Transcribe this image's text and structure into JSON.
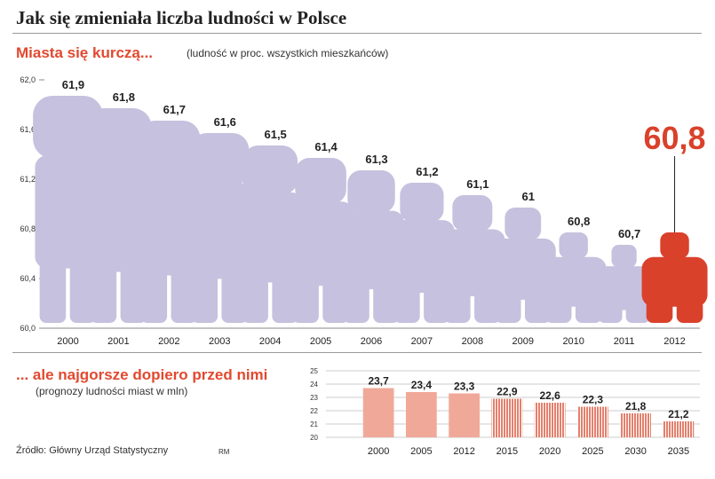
{
  "title": "Jak się zmieniała liczba ludności w Polsce",
  "top_chart": {
    "heading": "Miasta się kurczą...",
    "note": "(ludność w proc. wszystkich mieszkańców)"
  },
  "bottom_chart": {
    "heading": "... ale najgorsze dopiero przed nimi",
    "note": "(prognozy ludności miast w mln)"
  },
  "source": "Źródło: Główny Urząd Statystyczny",
  "author_initials": "RM",
  "colors": {
    "historic": "#c6c1de",
    "highlight": "#d9412b",
    "bar": "#f0a999",
    "forecast_stripe": "#e4806d",
    "axis": "#888888"
  },
  "chart_data": [
    {
      "type": "bar",
      "title": "Miasta się kurczą...",
      "ylabel": "ludność w proc. wszystkich mieszkańców",
      "ylim": [
        60.0,
        62.0
      ],
      "yticks": [
        "62,0",
        "61,6",
        "61,2",
        "60,8",
        "60,4",
        "60,0"
      ],
      "ytick_values": [
        62.0,
        61.6,
        61.2,
        60.8,
        60.4,
        60.0
      ],
      "categories": [
        "2000",
        "2001",
        "2002",
        "2003",
        "2004",
        "2005",
        "2006",
        "2007",
        "2008",
        "2009",
        "2010",
        "2011",
        "2012"
      ],
      "values": [
        61.9,
        61.8,
        61.7,
        61.6,
        61.5,
        61.4,
        61.3,
        61.2,
        61.1,
        61.0,
        60.8,
        60.7,
        60.8
      ],
      "labels": [
        "61,9",
        "61,8",
        "61,7",
        "61,6",
        "61,5",
        "61,4",
        "61,3",
        "61,2",
        "61,1",
        "61",
        "60,8",
        "60,7",
        "60,8"
      ],
      "highlight_index": 12,
      "marker": "human silhouette"
    },
    {
      "type": "bar",
      "title": "... ale najgorsze dopiero przed nimi",
      "ylabel": "prognozy ludności miast w mln",
      "ylim": [
        20,
        25
      ],
      "yticks": [
        "25",
        "24",
        "23",
        "22",
        "21",
        "20"
      ],
      "ytick_values": [
        25,
        24,
        23,
        22,
        21,
        20
      ],
      "categories": [
        "2000",
        "2005",
        "2012",
        "2015",
        "2020",
        "2025",
        "2030",
        "2035"
      ],
      "values": [
        23.7,
        23.4,
        23.3,
        22.9,
        22.6,
        22.3,
        21.8,
        21.2
      ],
      "labels": [
        "23,7",
        "23,4",
        "23,3",
        "22,9",
        "22,6",
        "22,3",
        "21,8",
        "21,2"
      ],
      "forecast_from_index": 3
    }
  ]
}
